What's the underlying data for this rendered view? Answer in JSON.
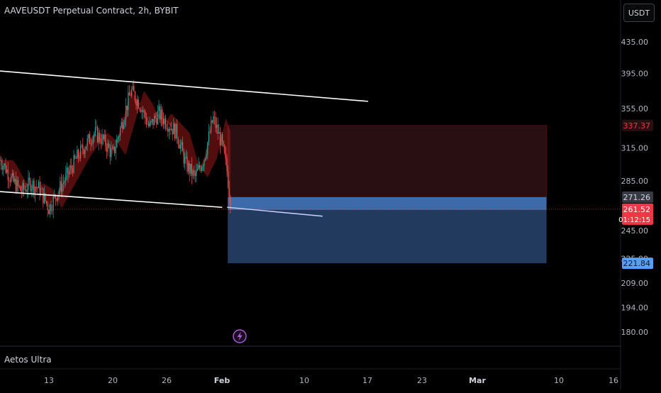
{
  "header": {
    "title": "AAVEUSDT Perpetual Contract, 2h, BYBIT",
    "currency": "USDT"
  },
  "indicator": {
    "name": "Aetos Ultra"
  },
  "colors": {
    "background": "#000000",
    "bull": "#26a69a",
    "bear": "#ef5350",
    "stop_zone": "#2a0f12",
    "target_zone": "#223a5e",
    "target_band": "#3d6aa8",
    "channel": "#ffffff",
    "price_label": "#f23645",
    "target_label": "#5b9cf6",
    "lightning": "#b05cd6"
  },
  "chart_data": {
    "type": "candlestick",
    "symbol": "AAVEUSDT",
    "interval": "2h",
    "exchange": "BYBIT",
    "y_axis": {
      "scale": "log",
      "ticks": [
        "435.00",
        "395.00",
        "355.00",
        "315.00",
        "285.00",
        "245.00",
        "209.00",
        "194.00",
        "180.00"
      ],
      "range": [
        172,
        470
      ]
    },
    "x_axis": {
      "ticks": [
        "13",
        "20",
        "26",
        "Feb",
        "10",
        "17",
        "23",
        "Mar",
        "10",
        "16"
      ]
    },
    "price_path": [
      {
        "date": "Jan 7",
        "price": 310
      },
      {
        "date": "Jan 8",
        "price": 300
      },
      {
        "date": "Jan 9",
        "price": 285
      },
      {
        "date": "Jan 10",
        "price": 276
      },
      {
        "date": "Jan 11",
        "price": 283
      },
      {
        "date": "Jan 12",
        "price": 278
      },
      {
        "date": "Jan 13",
        "price": 262
      },
      {
        "date": "Jan 14",
        "price": 276
      },
      {
        "date": "Jan 15",
        "price": 290
      },
      {
        "date": "Jan 16",
        "price": 305
      },
      {
        "date": "Jan 17",
        "price": 318
      },
      {
        "date": "Jan 18",
        "price": 330
      },
      {
        "date": "Jan 19",
        "price": 322
      },
      {
        "date": "Jan 20",
        "price": 308
      },
      {
        "date": "Jan 21",
        "price": 340
      },
      {
        "date": "Jan 22",
        "price": 375
      },
      {
        "date": "Jan 23",
        "price": 360
      },
      {
        "date": "Jan 24",
        "price": 335
      },
      {
        "date": "Jan 25",
        "price": 350
      },
      {
        "date": "Jan 26",
        "price": 340
      },
      {
        "date": "Jan 27",
        "price": 330
      },
      {
        "date": "Jan 28",
        "price": 300
      },
      {
        "date": "Jan 29",
        "price": 288
      },
      {
        "date": "Jan 30",
        "price": 305
      },
      {
        "date": "Jan 31",
        "price": 345
      },
      {
        "date": "Feb 1",
        "price": 318
      },
      {
        "date": "Feb 1.5",
        "price": 295
      },
      {
        "date": "Feb 2",
        "price": 262
      }
    ],
    "channel": {
      "upper": [
        {
          "date": "Jan 6",
          "price": 400
        },
        {
          "date": "Feb 17",
          "price": 363
        }
      ],
      "lower": [
        {
          "date": "Jan 6",
          "price": 277
        },
        {
          "date": "Feb 1",
          "price": 263
        }
      ],
      "extension": [
        {
          "date": "Feb 2",
          "price": 263
        },
        {
          "date": "Feb 12",
          "price": 256
        }
      ]
    },
    "position": {
      "type": "long",
      "entry": 271.26,
      "stop": 337.37,
      "target": 221.84,
      "start": "Feb 2",
      "end": "Mar 7"
    },
    "current_price": "261.52",
    "countdown": "01:12:15",
    "price_labels": {
      "stop": "337.37",
      "entry": "271.26",
      "target": "221.84"
    },
    "hidden_tick": "225.00"
  }
}
